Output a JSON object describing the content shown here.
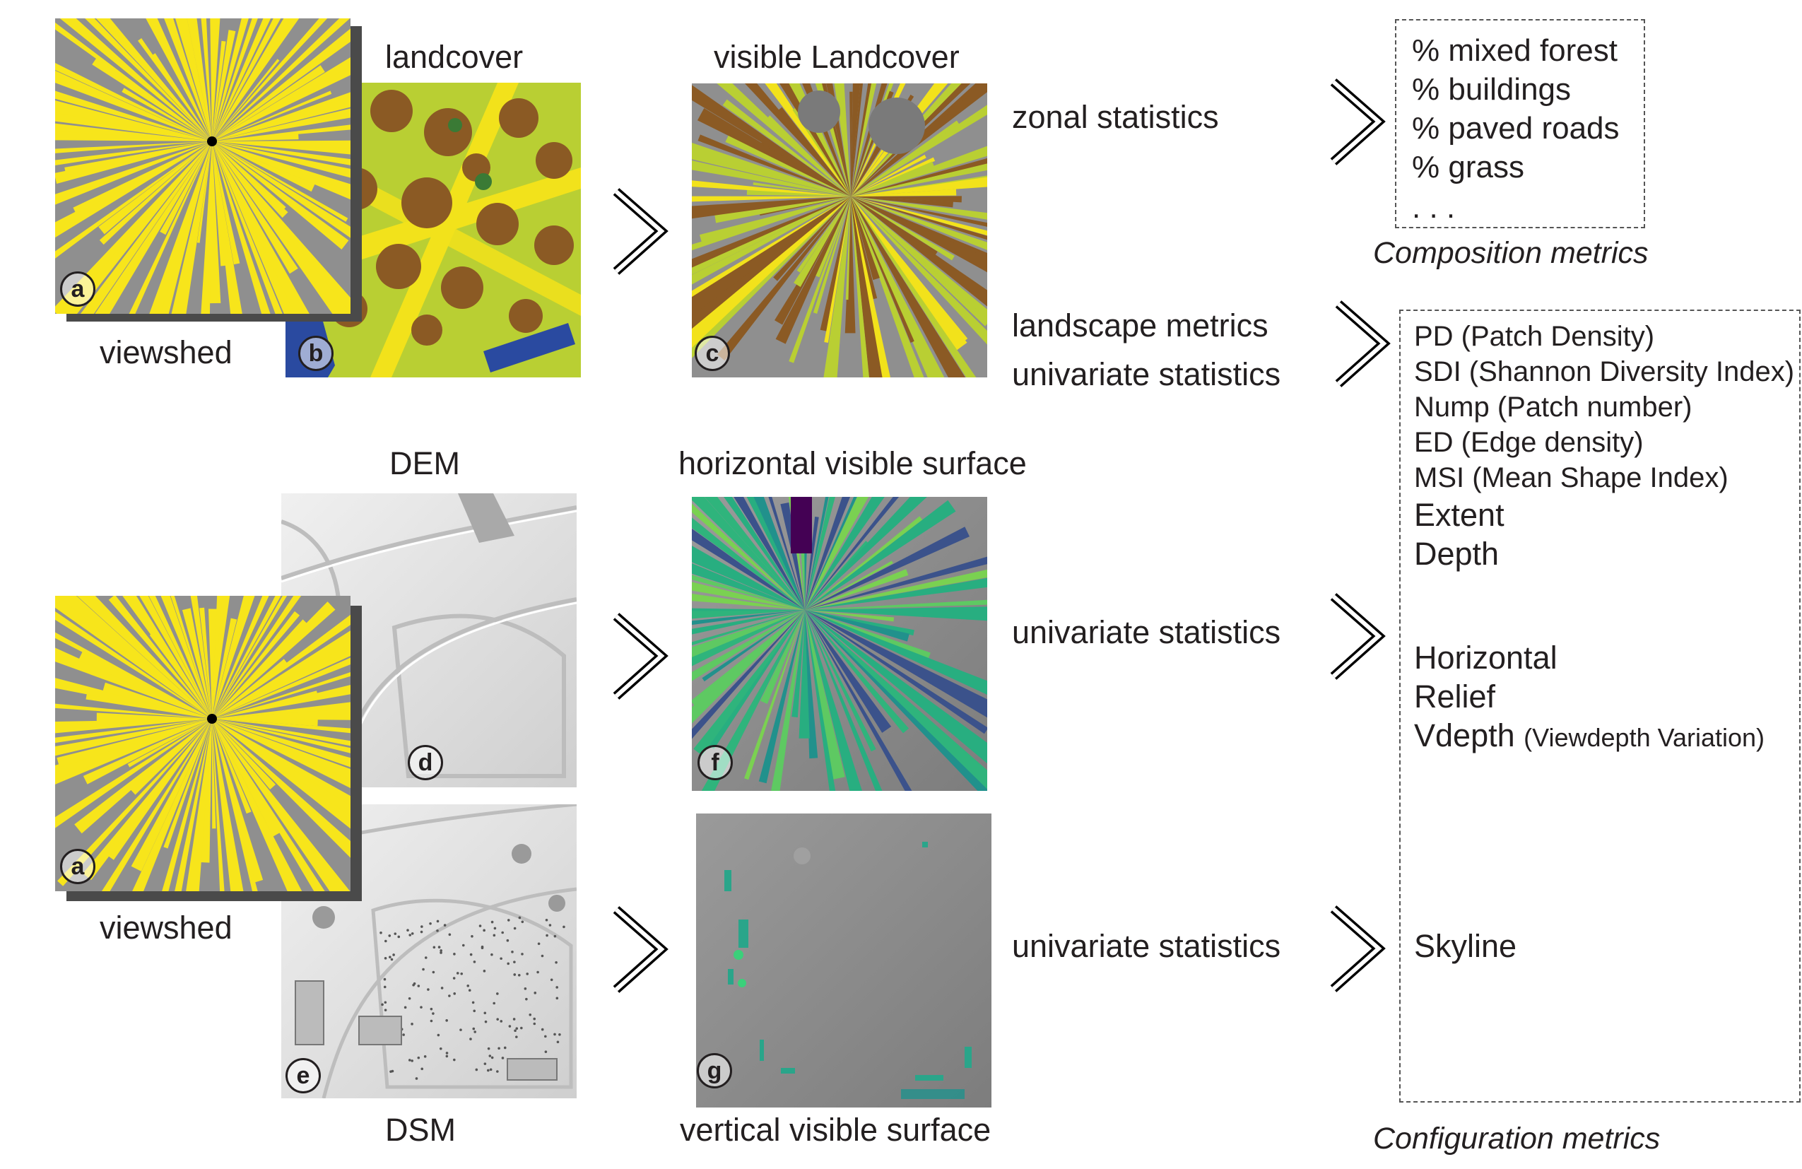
{
  "labels": {
    "landcover": "landcover",
    "visible_landcover": "visible Landcover",
    "viewshed_top": "viewshed",
    "viewshed_bottom": "viewshed",
    "dem": "DEM",
    "dsm": "DSM",
    "horizontal_visible_surface": "horizontal visible surface",
    "vertical_visible_surface": "vertical visible surface",
    "zonal_statistics": "zonal statistics",
    "landscape_metrics": "landscape metrics",
    "univariate_statistics_1": "univariate statistics",
    "univariate_statistics_2": "univariate statistics",
    "univariate_statistics_3": "univariate statistics"
  },
  "badges": {
    "a1": "a",
    "b": "b",
    "c": "c",
    "a2": "a",
    "d": "d",
    "e": "e",
    "f": "f",
    "g": "g"
  },
  "composition": {
    "items": [
      "% mixed forest",
      "% buildings",
      "% paved roads",
      "% grass"
    ],
    "ellipsis": ". . .",
    "caption": "Composition metrics"
  },
  "configuration": {
    "items": [
      "PD (Patch Density)",
      "SDI (Shannon Diversity Index)",
      "Nump (Patch number)",
      "ED (Edge density)",
      "MSI (Mean Shape Index)",
      "Extent",
      "Depth"
    ],
    "horizontal": "Horizontal",
    "relief": "Relief",
    "vdepth": "Vdepth",
    "vdepth_note": "(Viewdepth Variation)",
    "skyline": "Skyline",
    "caption": "Configuration metrics"
  },
  "colors": {
    "viewshed_yellow": "#f7e51b",
    "hillshade_gray": "#8f8f8f",
    "grass": "#b9cf33",
    "trees": "#8b5a24",
    "roads": "#f2e21b",
    "buildings": "#2a4aa0",
    "conifer": "#3a7a35",
    "viridis_low": "#440154",
    "viridis_mid": "#21918c",
    "viridis_high": "#7ad151"
  }
}
